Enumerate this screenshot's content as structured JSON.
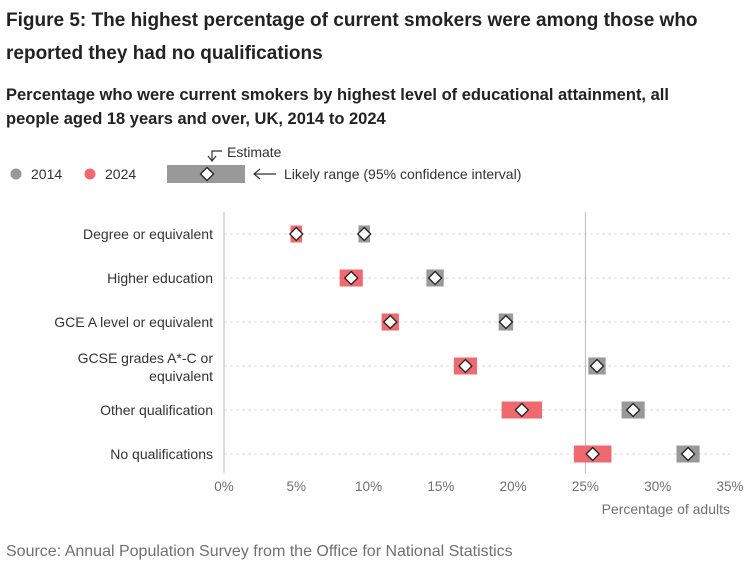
{
  "figure": {
    "title": "Figure 5: The highest percentage of current smokers were among those who reported they had no qualifications",
    "subtitle": "Percentage who were current smokers by highest level of educational attainment, all people aged 18 years and over, UK, 2014 to 2024",
    "source": "Source: Annual Population Survey from the Office for National Statistics"
  },
  "legend": {
    "estimate_label": "Estimate",
    "range_label": "Likely range (95% confidence interval)",
    "placement": "top-left"
  },
  "colors": {
    "series_2014": "#999999",
    "series_2024": "#ef6a6e",
    "marker_fill": "#ffffff",
    "marker_stroke": "#222222",
    "grid": "#d9d9d9",
    "baseline": "#bbbbbb"
  },
  "chart_data": {
    "type": "dot-range",
    "categories": [
      "Degree or equivalent",
      "Higher education",
      "GCE A level or equivalent",
      "GCSE grades A*-C or equivalent",
      "Other qualification",
      "No qualifications"
    ],
    "category_lines": [
      [
        "Degree or equivalent"
      ],
      [
        "Higher education"
      ],
      [
        "GCE A level or equivalent"
      ],
      [
        "GCSE grades A*-C or",
        "equivalent"
      ],
      [
        "Other qualification"
      ],
      [
        "No qualifications"
      ]
    ],
    "series": [
      {
        "name": "2014",
        "estimate": [
          9.7,
          14.6,
          19.5,
          25.8,
          28.3,
          32.1
        ],
        "lower": [
          9.3,
          14.0,
          19.0,
          25.2,
          27.5,
          31.3
        ],
        "upper": [
          10.1,
          15.2,
          20.0,
          26.4,
          29.1,
          32.9
        ]
      },
      {
        "name": "2024",
        "estimate": [
          5.0,
          8.8,
          11.5,
          16.7,
          20.6,
          25.5
        ],
        "lower": [
          4.6,
          8.0,
          10.9,
          15.9,
          19.2,
          24.2
        ],
        "upper": [
          5.4,
          9.6,
          12.1,
          17.5,
          22.0,
          26.8
        ]
      }
    ],
    "xlim": [
      0,
      35
    ],
    "x_ticks": [
      0,
      5,
      10,
      15,
      20,
      25,
      30,
      35
    ],
    "x_tick_labels": [
      "0%",
      "5%",
      "10%",
      "15%",
      "20%",
      "25%",
      "30%",
      "35%"
    ],
    "reference_line": 25,
    "xlabel": "Percentage of adults",
    "ylabel": "",
    "grid": "horizontal dashed"
  }
}
